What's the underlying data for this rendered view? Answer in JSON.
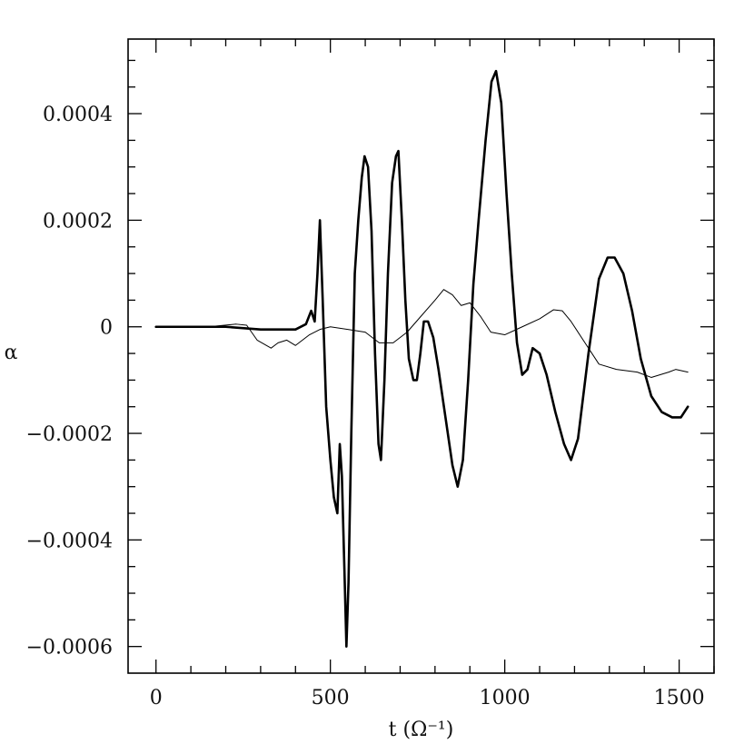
{
  "chart_data": {
    "type": "line",
    "xlabel": "t  (Ω⁻¹)",
    "ylabel": "α",
    "xlim": [
      -80,
      1600
    ],
    "ylim": [
      -0.00065,
      0.00054
    ],
    "xticks": [
      0,
      500,
      1000,
      1500
    ],
    "xtick_labels": [
      "0",
      "500",
      "1000",
      "1500"
    ],
    "yticks": [
      -0.0006,
      -0.0004,
      -0.0002,
      0,
      0.0002,
      0.0004
    ],
    "ytick_labels": [
      "−0.0006",
      "−0.0004",
      "−0.0002",
      "0",
      "0.0002",
      "0.0004"
    ],
    "x_minor_step": 100,
    "y_minor_step": 5e-05,
    "grid": false,
    "series": [
      {
        "color": "#000000",
        "width": 2.6,
        "points": [
          [
            0,
            0
          ],
          [
            100,
            0
          ],
          [
            200,
            0
          ],
          [
            300,
            -5e-06
          ],
          [
            400,
            -5e-06
          ],
          [
            430,
            5e-06
          ],
          [
            445,
            3e-05
          ],
          [
            455,
            1e-05
          ],
          [
            463,
            0.0001
          ],
          [
            470,
            0.0002
          ],
          [
            478,
            5e-05
          ],
          [
            488,
            -0.00015
          ],
          [
            500,
            -0.00025
          ],
          [
            510,
            -0.00032
          ],
          [
            520,
            -0.00035
          ],
          [
            527,
            -0.00022
          ],
          [
            533,
            -0.00028
          ],
          [
            540,
            -0.00045
          ],
          [
            546,
            -0.0006
          ],
          [
            552,
            -0.00048
          ],
          [
            560,
            -0.0002
          ],
          [
            570,
            0.0001
          ],
          [
            580,
            0.0002
          ],
          [
            590,
            0.00028
          ],
          [
            598,
            0.00032
          ],
          [
            608,
            0.0003
          ],
          [
            618,
            0.00018
          ],
          [
            628,
            -5e-05
          ],
          [
            638,
            -0.00022
          ],
          [
            645,
            -0.00025
          ],
          [
            655,
            -0.0001
          ],
          [
            665,
            0.0001
          ],
          [
            677,
            0.00027
          ],
          [
            688,
            0.00032
          ],
          [
            695,
            0.00033
          ],
          [
            705,
            0.0002
          ],
          [
            715,
            5e-05
          ],
          [
            725,
            -6e-05
          ],
          [
            738,
            -0.0001
          ],
          [
            748,
            -0.0001
          ],
          [
            758,
            -5e-05
          ],
          [
            768,
            1e-05
          ],
          [
            780,
            1e-05
          ],
          [
            795,
            -2e-05
          ],
          [
            810,
            -8e-05
          ],
          [
            830,
            -0.00017
          ],
          [
            850,
            -0.00026
          ],
          [
            865,
            -0.0003
          ],
          [
            880,
            -0.00025
          ],
          [
            895,
            -0.0001
          ],
          [
            910,
            8e-05
          ],
          [
            925,
            0.0002
          ],
          [
            945,
            0.00035
          ],
          [
            962,
            0.00046
          ],
          [
            975,
            0.00048
          ],
          [
            990,
            0.00042
          ],
          [
            1005,
            0.00025
          ],
          [
            1020,
            0.0001
          ],
          [
            1035,
            -3e-05
          ],
          [
            1050,
            -9e-05
          ],
          [
            1065,
            -8e-05
          ],
          [
            1080,
            -4e-05
          ],
          [
            1100,
            -5e-05
          ],
          [
            1120,
            -9e-05
          ],
          [
            1145,
            -0.00016
          ],
          [
            1170,
            -0.00022
          ],
          [
            1190,
            -0.00025
          ],
          [
            1210,
            -0.00021
          ],
          [
            1240,
            -5e-05
          ],
          [
            1270,
            9e-05
          ],
          [
            1295,
            0.00013
          ],
          [
            1315,
            0.00013
          ],
          [
            1340,
            0.0001
          ],
          [
            1365,
            3e-05
          ],
          [
            1390,
            -6e-05
          ],
          [
            1420,
            -0.00013
          ],
          [
            1450,
            -0.00016
          ],
          [
            1480,
            -0.00017
          ],
          [
            1505,
            -0.00017
          ],
          [
            1525,
            -0.00015
          ]
        ]
      },
      {
        "color": "#000000",
        "width": 1,
        "points": [
          [
            0,
            0
          ],
          [
            150,
            0
          ],
          [
            230,
            5e-06
          ],
          [
            260,
            3e-06
          ],
          [
            290,
            -2.5e-05
          ],
          [
            330,
            -4e-05
          ],
          [
            350,
            -3e-05
          ],
          [
            375,
            -2.5e-05
          ],
          [
            400,
            -3.5e-05
          ],
          [
            440,
            -1.5e-05
          ],
          [
            470,
            -5e-06
          ],
          [
            500,
            0
          ],
          [
            550,
            -5e-06
          ],
          [
            600,
            -1e-05
          ],
          [
            640,
            -3e-05
          ],
          [
            680,
            -3e-05
          ],
          [
            720,
            -1e-05
          ],
          [
            760,
            2e-05
          ],
          [
            800,
            5e-05
          ],
          [
            825,
            7e-05
          ],
          [
            850,
            6e-05
          ],
          [
            875,
            4e-05
          ],
          [
            900,
            4.5e-05
          ],
          [
            930,
            2e-05
          ],
          [
            960,
            -1e-05
          ],
          [
            1000,
            -1.5e-05
          ],
          [
            1050,
            0
          ],
          [
            1100,
            1.5e-05
          ],
          [
            1140,
            3.2e-05
          ],
          [
            1165,
            3e-05
          ],
          [
            1190,
            1e-05
          ],
          [
            1230,
            -3e-05
          ],
          [
            1270,
            -7e-05
          ],
          [
            1320,
            -8e-05
          ],
          [
            1380,
            -8.5e-05
          ],
          [
            1420,
            -9.5e-05
          ],
          [
            1470,
            -8.5e-05
          ],
          [
            1490,
            -8e-05
          ],
          [
            1525,
            -8.5e-05
          ]
        ]
      }
    ]
  }
}
